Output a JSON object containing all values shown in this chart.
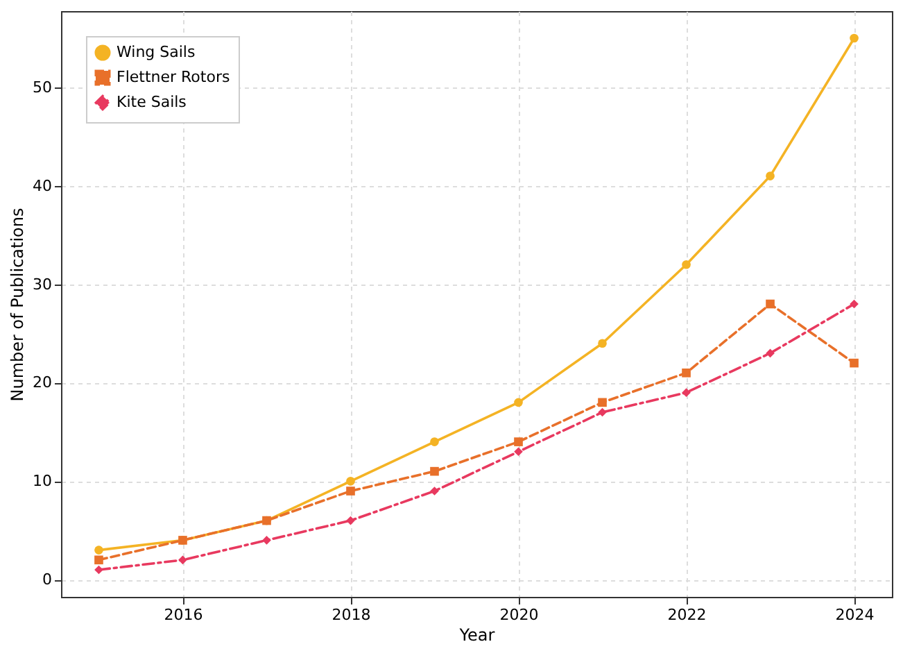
{
  "chart_data": {
    "type": "line",
    "xlabel": "Year",
    "ylabel": "Number of Publications",
    "x": [
      2015,
      2016,
      2017,
      2018,
      2019,
      2020,
      2021,
      2022,
      2023,
      2024
    ],
    "series": [
      {
        "name": "Wing Sails",
        "color": "#f4b324",
        "marker": "circle",
        "line_style": "solid",
        "values": [
          3,
          4,
          6,
          10,
          14,
          18,
          24,
          32,
          41,
          55
        ]
      },
      {
        "name": "Flettner Rotors",
        "color": "#e8702a",
        "marker": "square",
        "line_style": "dashed",
        "values": [
          2,
          4,
          6,
          9,
          11,
          14,
          18,
          21,
          28,
          22
        ]
      },
      {
        "name": "Kite Sails",
        "color": "#e8395f",
        "marker": "diamond",
        "line_style": "dashdot",
        "values": [
          1,
          2,
          4,
          6,
          9,
          13,
          17,
          19,
          23,
          28
        ]
      }
    ],
    "xlim": [
      2014.55,
      2024.45
    ],
    "xticks": [
      2016,
      2018,
      2020,
      2022,
      2024
    ],
    "ylim": [
      -1.75,
      57.75
    ],
    "yticks": [
      0,
      10,
      20,
      30,
      40,
      50
    ],
    "grid": true,
    "legend": "top left"
  }
}
